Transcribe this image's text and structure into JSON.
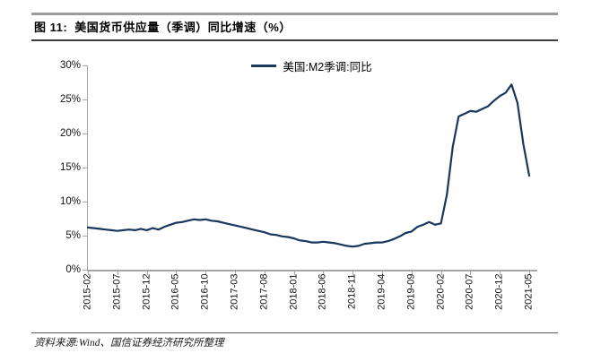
{
  "page": {
    "figure_label": "图 11:",
    "title": "美国货币供应量（季调）同比增速（%）",
    "source_note": "资料来源:Wind、国信证券经济研究所整理"
  },
  "colors": {
    "series_line": "#17375E",
    "axis": "#a6a6a6",
    "title_text": "#000000"
  },
  "chart_data": {
    "type": "line",
    "title": "美国货币供应量（季调）同比增速（%）",
    "legend": [
      "美国:M2季调:同比"
    ],
    "legend_position": "top-center",
    "grid": false,
    "ylim": [
      0,
      30
    ],
    "y_ticks": [
      "0%",
      "5%",
      "10%",
      "15%",
      "20%",
      "25%",
      "30%"
    ],
    "y_tick_values": [
      0,
      5,
      10,
      15,
      20,
      25,
      30
    ],
    "x_tick_labels": [
      "2015-02",
      "2015-07",
      "2015-12",
      "2016-05",
      "2016-10",
      "2017-03",
      "2017-08",
      "2018-01",
      "2018-06",
      "2018-11",
      "2019-04",
      "2019-09",
      "2020-02",
      "2020-07",
      "2020-12",
      "2021-05"
    ],
    "x_tick_every": 5,
    "x": [
      "2015-02",
      "2015-03",
      "2015-04",
      "2015-05",
      "2015-06",
      "2015-07",
      "2015-08",
      "2015-09",
      "2015-10",
      "2015-11",
      "2015-12",
      "2016-01",
      "2016-02",
      "2016-03",
      "2016-04",
      "2016-05",
      "2016-06",
      "2016-07",
      "2016-08",
      "2016-09",
      "2016-10",
      "2016-11",
      "2016-12",
      "2017-01",
      "2017-02",
      "2017-03",
      "2017-04",
      "2017-05",
      "2017-06",
      "2017-07",
      "2017-08",
      "2017-09",
      "2017-10",
      "2017-11",
      "2017-12",
      "2018-01",
      "2018-02",
      "2018-03",
      "2018-04",
      "2018-05",
      "2018-06",
      "2018-07",
      "2018-08",
      "2018-09",
      "2018-10",
      "2018-11",
      "2018-12",
      "2019-01",
      "2019-02",
      "2019-03",
      "2019-04",
      "2019-05",
      "2019-06",
      "2019-07",
      "2019-08",
      "2019-09",
      "2019-10",
      "2019-11",
      "2019-12",
      "2020-01",
      "2020-02",
      "2020-03",
      "2020-04",
      "2020-05",
      "2020-06",
      "2020-07",
      "2020-08",
      "2020-09",
      "2020-10",
      "2020-11",
      "2020-12",
      "2021-01",
      "2021-02",
      "2021-03",
      "2021-04",
      "2021-05"
    ],
    "series": [
      {
        "name": "美国:M2季调:同比",
        "color": "#17375E",
        "values": [
          6.2,
          6.1,
          6.0,
          5.9,
          5.8,
          5.7,
          5.8,
          5.9,
          5.8,
          6.0,
          5.8,
          6.1,
          5.9,
          6.3,
          6.6,
          6.9,
          7.0,
          7.2,
          7.4,
          7.3,
          7.4,
          7.2,
          7.1,
          6.9,
          6.7,
          6.5,
          6.3,
          6.1,
          5.9,
          5.7,
          5.5,
          5.2,
          5.1,
          4.9,
          4.8,
          4.6,
          4.3,
          4.2,
          4.0,
          4.0,
          4.1,
          4.0,
          3.9,
          3.7,
          3.5,
          3.4,
          3.5,
          3.8,
          3.9,
          4.0,
          4.0,
          4.2,
          4.5,
          4.9,
          5.4,
          5.6,
          6.3,
          6.6,
          7.0,
          6.6,
          6.8,
          11.0,
          18.0,
          22.5,
          22.9,
          23.3,
          23.2,
          23.6,
          24.0,
          24.8,
          25.5,
          26.0,
          27.2,
          24.5,
          18.5,
          13.8
        ]
      }
    ]
  }
}
